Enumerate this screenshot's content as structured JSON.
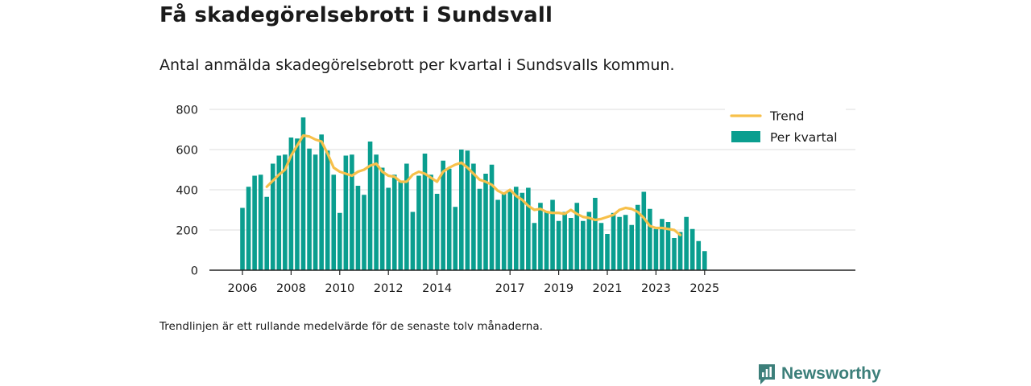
{
  "title": "Få skadegörelsebrott i Sundsvall",
  "subtitle": "Antal anmälda skadegörelsebrott per kvartal i Sundsvalls kommun.",
  "note": "Trendlinjen är ett rullande medelvärde för de senaste tolv månaderna.",
  "brand": {
    "name": "Newsworthy",
    "icon": "newsworthy-bar-chart-icon",
    "color": "#3c7f7a"
  },
  "chart_data": {
    "type": "bar",
    "x_start": "2006 Q1",
    "x_ticks": [
      "2006",
      "2008",
      "2010",
      "2012",
      "2014",
      "2017",
      "2019",
      "2021",
      "2023",
      "2025"
    ],
    "y_ticks": [
      0,
      200,
      400,
      600,
      800
    ],
    "ylim": [
      0,
      800
    ],
    "grid": true,
    "legend_position": "top-right",
    "colors": {
      "bars": "#0a9e8f",
      "trend": "#f7c04a",
      "grid": "#dddddd",
      "axis": "#222222"
    },
    "series": [
      {
        "name": "Per kvartal",
        "type": "bar",
        "values": [
          310,
          415,
          470,
          475,
          365,
          530,
          570,
          575,
          660,
          655,
          760,
          605,
          575,
          675,
          595,
          475,
          285,
          570,
          575,
          420,
          375,
          640,
          575,
          510,
          410,
          475,
          445,
          530,
          290,
          470,
          580,
          475,
          380,
          545,
          505,
          315,
          600,
          595,
          530,
          405,
          480,
          525,
          350,
          385,
          390,
          415,
          385,
          410,
          235,
          335,
          290,
          350,
          245,
          290,
          260,
          335,
          245,
          290,
          360,
          235,
          180,
          285,
          265,
          275,
          225,
          325,
          390,
          305,
          205,
          255,
          240,
          160,
          190,
          265,
          205,
          145,
          95
        ]
      },
      {
        "name": "Trend",
        "type": "line",
        "start_index": 4,
        "values": [
          415,
          445,
          475,
          500,
          570,
          620,
          670,
          665,
          650,
          640,
          580,
          510,
          490,
          480,
          470,
          490,
          500,
          520,
          530,
          490,
          470,
          465,
          440,
          440,
          475,
          490,
          480,
          460,
          440,
          490,
          510,
          525,
          535,
          510,
          480,
          450,
          440,
          425,
          395,
          380,
          400,
          370,
          350,
          320,
          300,
          305,
          290,
          285,
          285,
          280,
          300,
          280,
          265,
          260,
          250,
          255,
          265,
          275,
          300,
          310,
          305,
          290,
          260,
          220,
          210,
          210,
          205,
          200,
          175
        ]
      }
    ]
  }
}
